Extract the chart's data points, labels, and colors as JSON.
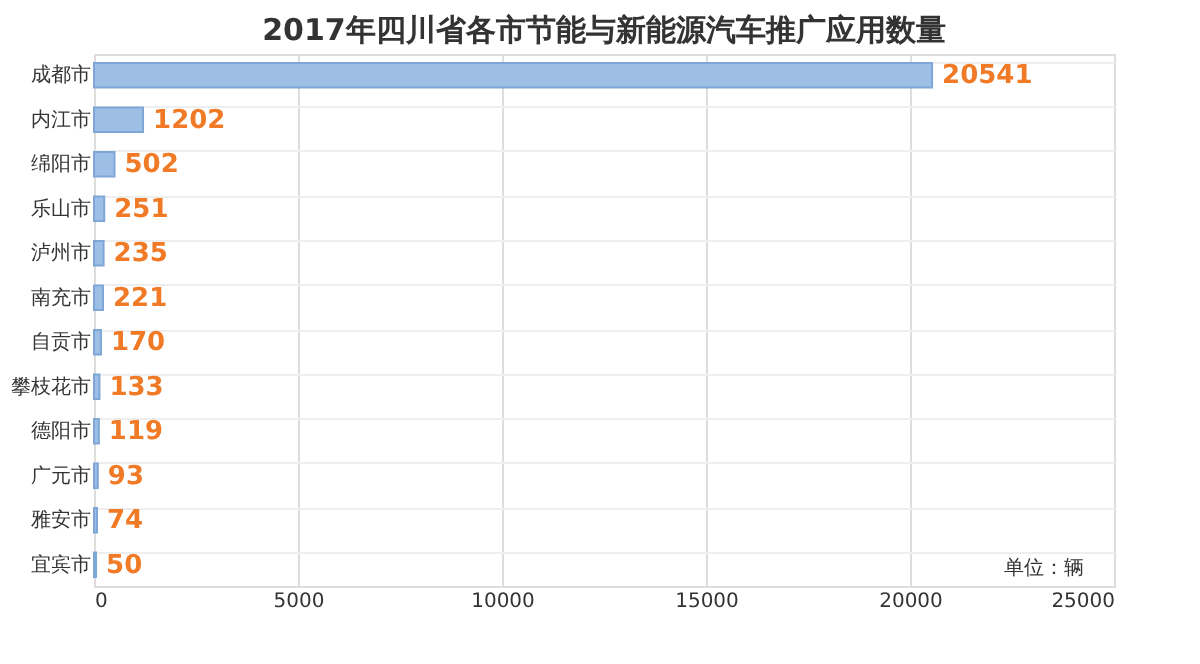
{
  "chart_data": {
    "type": "bar",
    "orientation": "horizontal",
    "title": "2017年四川省各市节能与新能源汽车推广应用数量",
    "categories": [
      "成都市",
      "内江市",
      "绵阳市",
      "乐山市",
      "泸州市",
      "南充市",
      "自贡市",
      "攀枝花市",
      "德阳市",
      "广元市",
      "雅安市",
      "宜宾市"
    ],
    "values": [
      20541,
      1202,
      502,
      251,
      235,
      221,
      170,
      133,
      119,
      93,
      74,
      50
    ],
    "color": "#9dbfe6",
    "xlim": [
      0,
      25000
    ],
    "xticks": [
      0,
      5000,
      10000,
      15000,
      20000,
      25000
    ],
    "grid": true,
    "data_labels": true,
    "annotations": [
      "单位：辆"
    ]
  }
}
